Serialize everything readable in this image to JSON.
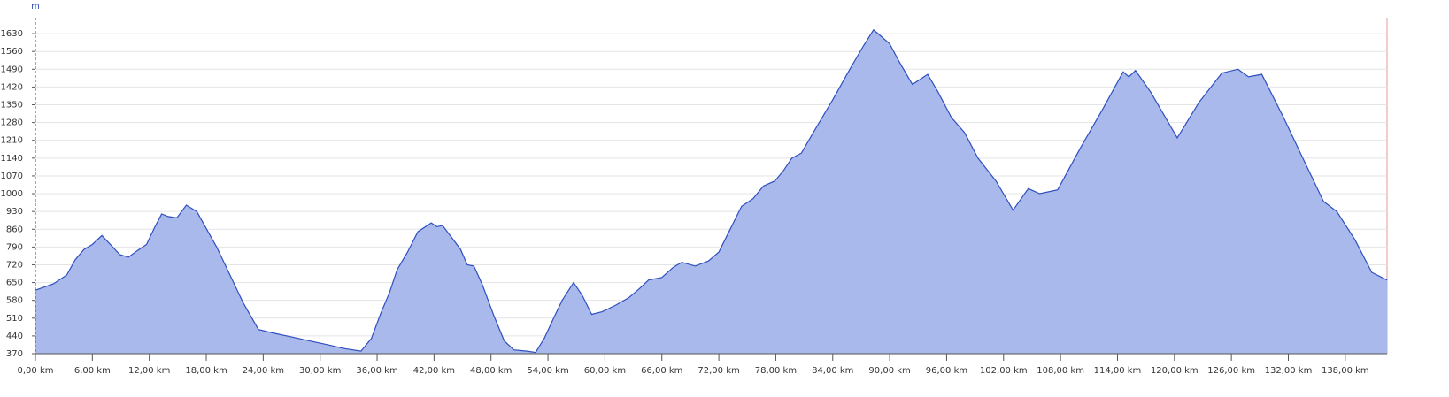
{
  "chart_data": {
    "type": "area",
    "y_axis_label": "m",
    "x": [
      0,
      1.9,
      3.3,
      4.2,
      5.1,
      6,
      7,
      7.9,
      8.9,
      9.8,
      10.7,
      11.7,
      12.6,
      13.3,
      14,
      14.9,
      15.9,
      17,
      17.9,
      19.1,
      20.5,
      21.9,
      23.5,
      25.2,
      27.1,
      28.9,
      30.8,
      32.6,
      34.3,
      35.4,
      36.4,
      37.3,
      38.1,
      39.2,
      40.3,
      41.7,
      42.3,
      42.9,
      43.8,
      44.8,
      45.5,
      46.2,
      47.1,
      48.3,
      49.4,
      50.4,
      51.8,
      52.7,
      53.6,
      54.6,
      55.5,
      56.7,
      57.6,
      58.6,
      59.7,
      61.1,
      62.5,
      63.6,
      64.6,
      66,
      67.2,
      68.1,
      69.5,
      70.9,
      72,
      73.2,
      74.4,
      75.6,
      76.7,
      77.9,
      78.8,
      79.7,
      80.7,
      82.1,
      84,
      85.8,
      87.2,
      88.3,
      89.1,
      90,
      91,
      92.4,
      94,
      95.1,
      96.5,
      97.9,
      99.3,
      101.2,
      103,
      104.6,
      105.8,
      107.7,
      110.1,
      112.4,
      114.6,
      115.2,
      115.9,
      117.5,
      120.3,
      122.6,
      125,
      126.7,
      127.8,
      129.2,
      131.5,
      133.4,
      135.7,
      137.1,
      139,
      140.8,
      142.4
    ],
    "values": [
      620,
      645,
      680,
      740,
      780,
      800,
      835,
      800,
      760,
      750,
      775,
      800,
      870,
      920,
      910,
      905,
      955,
      930,
      870,
      790,
      680,
      570,
      465,
      450,
      435,
      420,
      405,
      390,
      380,
      430,
      530,
      610,
      700,
      770,
      850,
      885,
      870,
      875,
      830,
      780,
      720,
      715,
      640,
      520,
      420,
      385,
      380,
      375,
      430,
      510,
      580,
      650,
      600,
      525,
      535,
      560,
      590,
      625,
      660,
      670,
      710,
      730,
      715,
      735,
      770,
      860,
      950,
      980,
      1030,
      1050,
      1090,
      1140,
      1160,
      1250,
      1370,
      1490,
      1580,
      1645,
      1620,
      1590,
      1520,
      1430,
      1470,
      1400,
      1300,
      1240,
      1140,
      1050,
      935,
      1020,
      1000,
      1015,
      1180,
      1330,
      1480,
      1460,
      1485,
      1400,
      1220,
      1360,
      1475,
      1490,
      1460,
      1470,
      1300,
      1150,
      970,
      930,
      820,
      690,
      660
    ],
    "xlim": [
      0,
      142.4
    ],
    "ylim": [
      370,
      1693
    ],
    "xticks": [
      {
        "value": 0,
        "label": "0,00 km"
      },
      {
        "value": 6,
        "label": "6,00 km"
      },
      {
        "value": 12,
        "label": "12,00 km"
      },
      {
        "value": 18,
        "label": "18,00 km"
      },
      {
        "value": 24,
        "label": "24,00 km"
      },
      {
        "value": 30,
        "label": "30,00 km"
      },
      {
        "value": 36,
        "label": "36,00 km"
      },
      {
        "value": 42,
        "label": "42,00 km"
      },
      {
        "value": 48,
        "label": "48,00 km"
      },
      {
        "value": 54,
        "label": "54,00 km"
      },
      {
        "value": 60,
        "label": "60,00 km"
      },
      {
        "value": 66,
        "label": "66,00 km"
      },
      {
        "value": 72,
        "label": "72,00 km"
      },
      {
        "value": 78,
        "label": "78,00 km"
      },
      {
        "value": 84,
        "label": "84,00 km"
      },
      {
        "value": 90,
        "label": "90,00 km"
      },
      {
        "value": 96,
        "label": "96,00 km"
      },
      {
        "value": 102,
        "label": "102,00 km"
      },
      {
        "value": 108,
        "label": "108,00 km"
      },
      {
        "value": 114,
        "label": "114,00 km"
      },
      {
        "value": 120,
        "label": "120,00 km"
      },
      {
        "value": 126,
        "label": "126,00 km"
      },
      {
        "value": 132,
        "label": "132,00 km"
      },
      {
        "value": 138,
        "label": "138,00 km"
      }
    ],
    "yticks": [
      370,
      440,
      510,
      580,
      650,
      720,
      790,
      860,
      930,
      1000,
      1070,
      1140,
      1210,
      1280,
      1350,
      1420,
      1490,
      1560,
      1630
    ],
    "color": "#a9b9ec",
    "line_color": "#2f4fbf",
    "grid": true
  }
}
